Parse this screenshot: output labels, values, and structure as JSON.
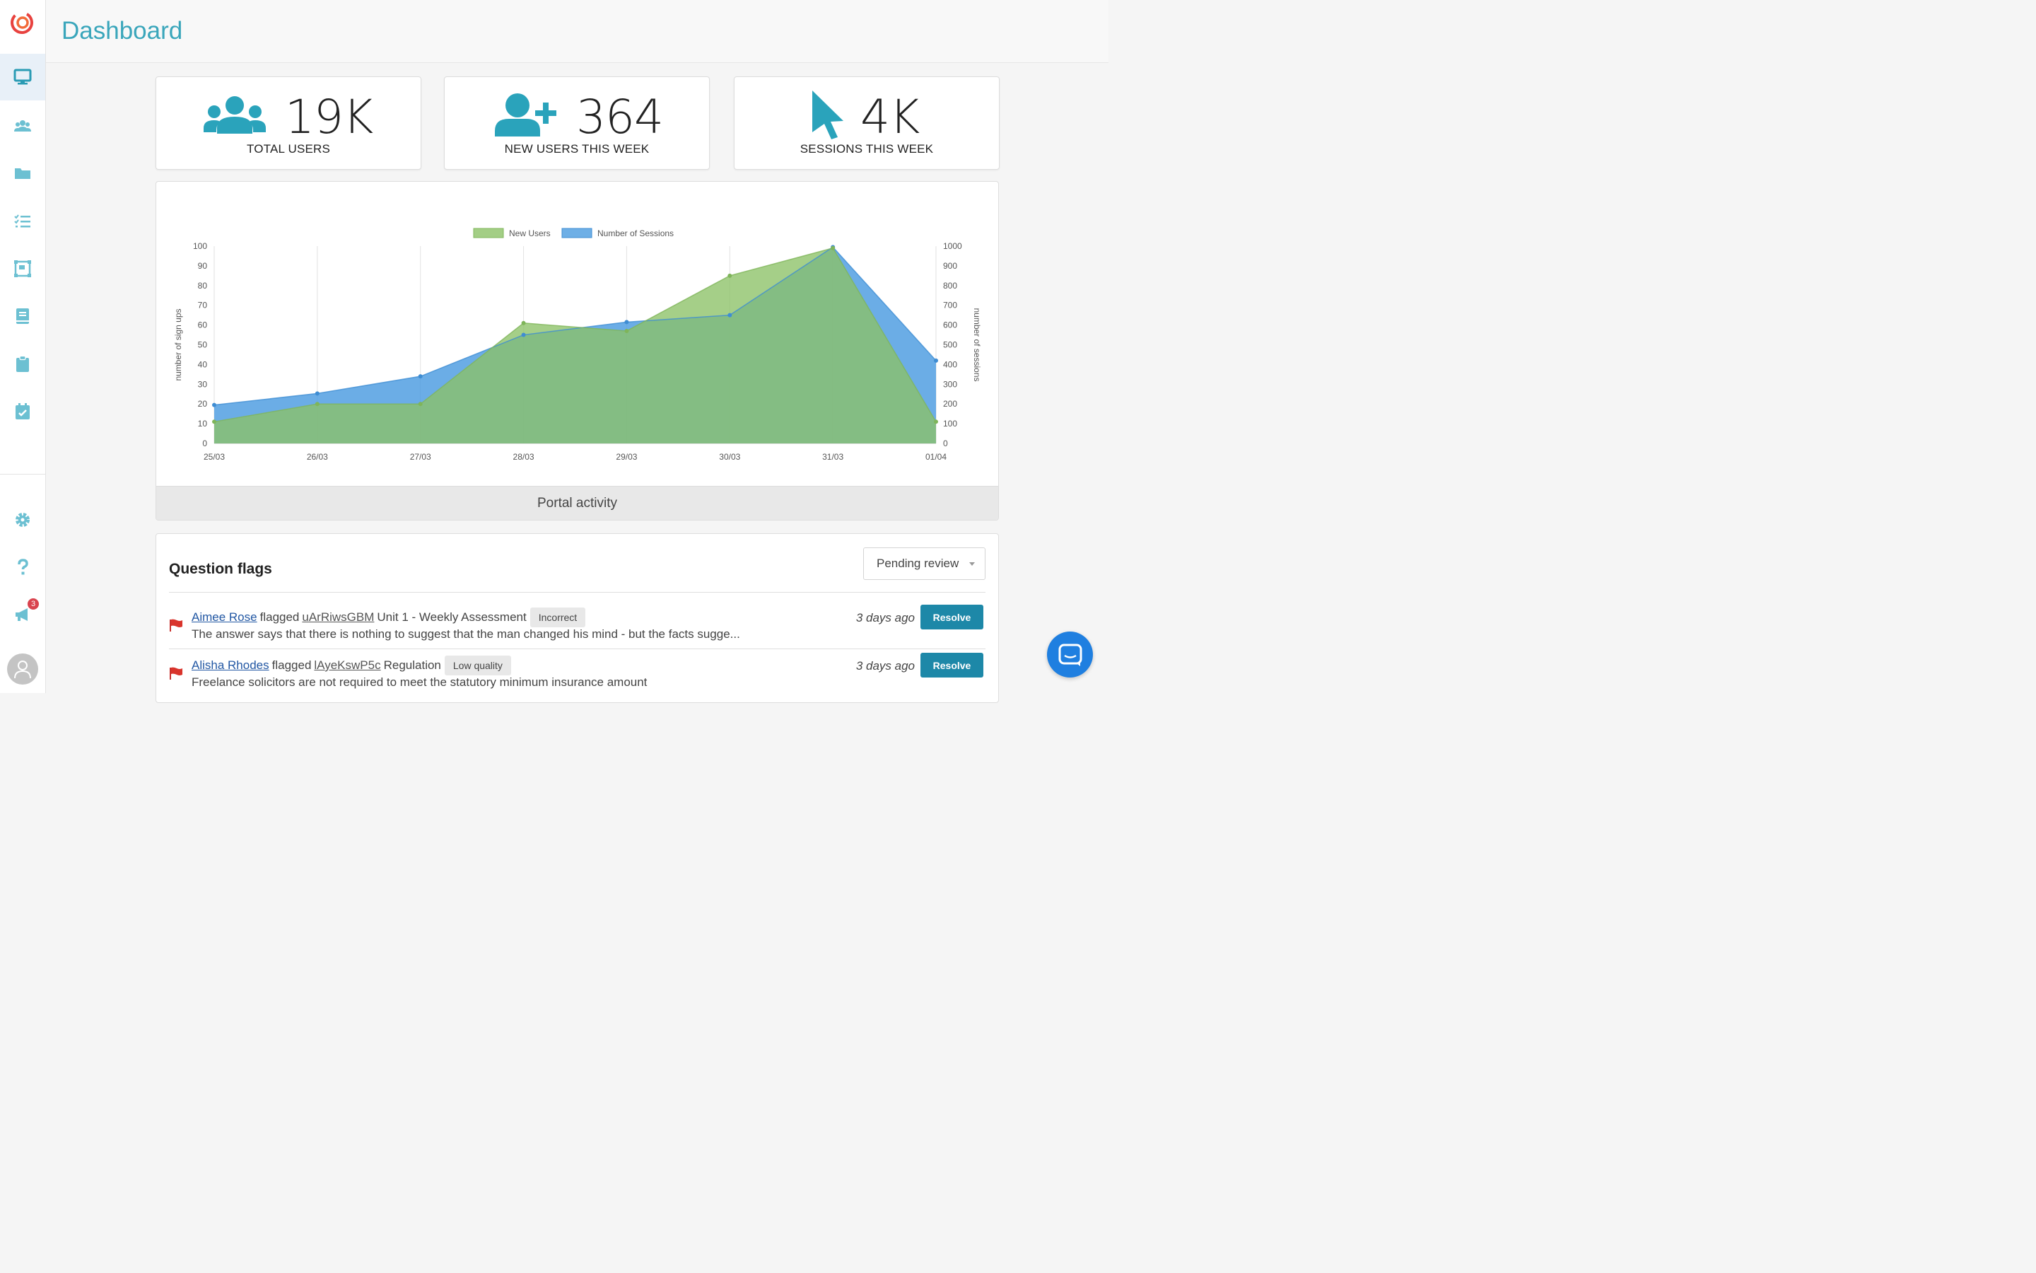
{
  "header": {
    "title": "Dashboard"
  },
  "sidebar": {
    "items": [
      {
        "icon": "monitor-icon",
        "active": true
      },
      {
        "icon": "users-icon",
        "active": false
      },
      {
        "icon": "folder-icon",
        "active": false
      },
      {
        "icon": "checklist-icon",
        "active": false
      },
      {
        "icon": "diagram-icon",
        "active": false
      },
      {
        "icon": "book-icon",
        "active": false
      },
      {
        "icon": "clipboard-icon",
        "active": false
      },
      {
        "icon": "calendar-check-icon",
        "active": false
      }
    ],
    "bottom": [
      {
        "icon": "gear-icon"
      },
      {
        "icon": "help-icon"
      },
      {
        "icon": "megaphone-icon",
        "badge": "3"
      }
    ],
    "accent": "#3aa6bb"
  },
  "stats": [
    {
      "icon": "users-group-icon",
      "value": "19K",
      "label": "TOTAL USERS"
    },
    {
      "icon": "user-plus-icon",
      "value": "364",
      "label": "NEW USERS THIS WEEK"
    },
    {
      "icon": "cursor-icon",
      "value": "4K",
      "label": "SESSIONS THIS WEEK"
    }
  ],
  "chart_panel": {
    "footer": "Portal activity"
  },
  "chart_data": {
    "type": "area",
    "categories": [
      "25/03",
      "26/03",
      "27/03",
      "28/03",
      "29/03",
      "30/03",
      "31/03",
      "01/04"
    ],
    "series": [
      {
        "name": "New Users",
        "axis": "left",
        "color": "#8cc266",
        "values": [
          11,
          20,
          20,
          61,
          57,
          85,
          99,
          11
        ]
      },
      {
        "name": "Number of Sessions",
        "axis": "right",
        "color": "#4a9be0",
        "values": [
          195,
          253,
          340,
          550,
          615,
          650,
          995,
          420
        ]
      }
    ],
    "ylabel": "number of sign ups",
    "ylabel_right": "number of sessions",
    "ylim": [
      0,
      100
    ],
    "ylim_right": [
      0,
      1000
    ],
    "yticks": [
      "0",
      "10",
      "20",
      "30",
      "40",
      "50",
      "60",
      "70",
      "80",
      "90",
      "100"
    ],
    "yticks_right": [
      "0",
      "100",
      "200",
      "300",
      "400",
      "500",
      "600",
      "700",
      "800",
      "900",
      "1000"
    ],
    "legend": "top-center",
    "grid": "vertical"
  },
  "flags": {
    "title": "Question flags",
    "filter": {
      "selected": "Pending review"
    },
    "items": [
      {
        "user": "Aimee Rose",
        "verb": "flagged",
        "ref": "uArRiwsGBM",
        "context": "Unit 1 - Weekly Assessment",
        "tag": "Incorrect",
        "text": "The answer says that there is nothing to suggest that the man changed his mind - but the facts sugge...",
        "time": "3 days ago",
        "action": "Resolve"
      },
      {
        "user": "Alisha Rhodes",
        "verb": "flagged",
        "ref": "lAyeKswP5c",
        "context": "Regulation",
        "tag": "Low quality",
        "text": "Freelance solicitors are not required to meet the statutory minimum insurance amount",
        "time": "3 days ago",
        "action": "Resolve"
      }
    ]
  }
}
